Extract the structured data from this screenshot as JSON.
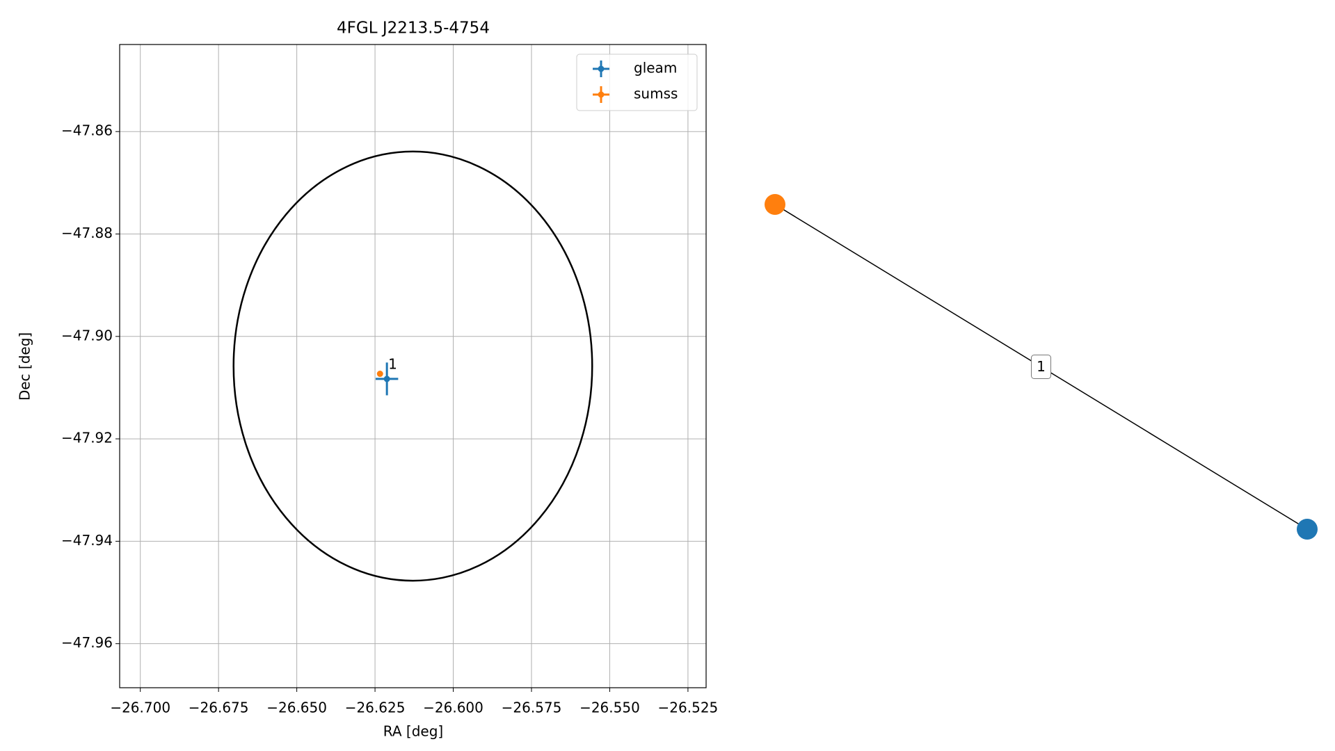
{
  "chart_data": [
    {
      "type": "scatter",
      "title": "4FGL J2213.5-4754",
      "x_label": "RA [deg]",
      "y_label": "Dec [deg]",
      "xlim": [
        -26.7066,
        -26.5192
      ],
      "ylim": [
        -47.9686,
        -47.843
      ],
      "xticks": [
        {
          "value": -26.7,
          "label": "−26.700"
        },
        {
          "value": -26.675,
          "label": "−26.675"
        },
        {
          "value": -26.65,
          "label": "−26.650"
        },
        {
          "value": -26.625,
          "label": "−26.625"
        },
        {
          "value": -26.6,
          "label": "−26.600"
        },
        {
          "value": -26.575,
          "label": "−26.575"
        },
        {
          "value": -26.55,
          "label": "−26.550"
        },
        {
          "value": -26.525,
          "label": "−26.525"
        }
      ],
      "yticks": [
        {
          "value": -47.86,
          "label": "−47.86"
        },
        {
          "value": -47.88,
          "label": "−47.88"
        },
        {
          "value": -47.9,
          "label": "−47.90"
        },
        {
          "value": -47.92,
          "label": "−47.92"
        },
        {
          "value": -47.94,
          "label": "−47.94"
        },
        {
          "value": -47.96,
          "label": "−47.96"
        }
      ],
      "grid": true,
      "legend": "upper right",
      "series": [
        {
          "name": "gleam",
          "color": "#1f77b4",
          "x": [
            -26.6212
          ],
          "values": [
            -47.9083
          ],
          "xerr": [
            0.0036
          ],
          "yerr": [
            0.0032
          ]
        },
        {
          "name": "sumss",
          "color": "#ff7f0e",
          "x": [
            -26.6234
          ],
          "values": [
            -47.9073
          ],
          "xerr": [
            0.0005
          ],
          "yerr": [
            0.0003
          ]
        }
      ],
      "annotation": "1",
      "ellipse": {
        "color": "#000000",
        "x": -26.6129,
        "y": -47.9058,
        "x_radius": 0.0573,
        "y_radius": 0.0419
      }
    },
    {
      "type": "graph",
      "nodes": [
        {
          "color": "#ff7f0e"
        },
        {
          "color": "#1f77b4"
        }
      ],
      "edges": [
        {
          "source": 0,
          "target": 1,
          "label": "1"
        }
      ]
    }
  ]
}
